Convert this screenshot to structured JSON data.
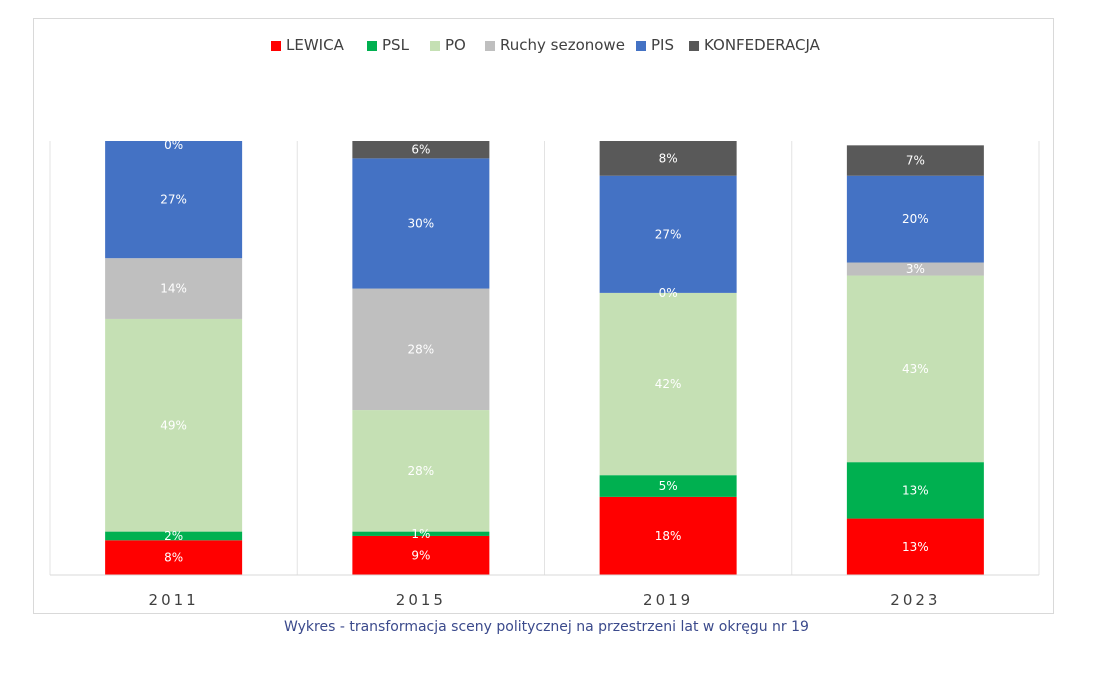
{
  "chart_data": {
    "type": "bar",
    "stacked": true,
    "categories": [
      "2011",
      "2015",
      "2019",
      "2023"
    ],
    "series": [
      {
        "name": "LEWICA",
        "color": "#ff0000",
        "values": [
          8,
          9,
          18,
          13
        ],
        "labels": [
          "8%",
          "9%",
          "18%",
          "13%"
        ],
        "label_color": "#ffffff"
      },
      {
        "name": "PSL",
        "color": "#00b050",
        "values": [
          2,
          1,
          5,
          13
        ],
        "labels": [
          "2%",
          "1%",
          "5%",
          "13%"
        ],
        "label_color": "#ffffff"
      },
      {
        "name": "PO",
        "color": "#c5e0b4",
        "values": [
          49,
          28,
          42,
          43
        ],
        "labels": [
          "49%",
          "28%",
          "42%",
          "43%"
        ],
        "label_color": "#ffffff"
      },
      {
        "name": "Ruchy sezonowe",
        "color": "#bfbfbf",
        "values": [
          14,
          28,
          0,
          3
        ],
        "labels": [
          "14%",
          "28%",
          "0%",
          "3%"
        ],
        "label_color": "#ffffff"
      },
      {
        "name": "PIS",
        "color": "#4472c4",
        "values": [
          27,
          30,
          27,
          20
        ],
        "labels": [
          "27%",
          "30%",
          "27%",
          "20%"
        ],
        "label_color": "#ffffff"
      },
      {
        "name": "KONFEDERACJA",
        "color": "#595959",
        "values": [
          0,
          6,
          8,
          7
        ],
        "labels": [
          "0%",
          "6%",
          "8%",
          "7%"
        ],
        "label_color": "#ffffff"
      }
    ],
    "ylim": [
      0,
      100
    ],
    "grid": false,
    "legend_position": "top",
    "caption": "Wykres - transformacja sceny politycznej na przestrzeni lat w okręgu nr 19"
  }
}
